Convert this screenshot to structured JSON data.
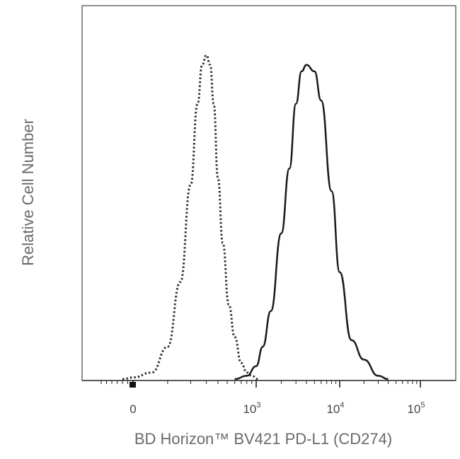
{
  "chart_data": {
    "type": "area",
    "title": "",
    "xlabel": "BD Horizon™ BV421 PD-L1 (CD274)",
    "ylabel": "Relative Cell Number",
    "x_scale": "biexponential (logicle)",
    "xlim": [
      -300,
      100000
    ],
    "ylim": [
      0,
      1
    ],
    "grid": false,
    "legend": "none",
    "x_ticks": [
      {
        "value": 0,
        "base": "0",
        "exp": ""
      },
      {
        "value": 1000,
        "base": "10",
        "exp": "3"
      },
      {
        "value": 10000,
        "base": "10",
        "exp": "4"
      },
      {
        "value": 100000,
        "base": "10",
        "exp": "5"
      }
    ],
    "series": [
      {
        "style": "dotted",
        "color": "#333333",
        "x": [
          -100,
          0,
          50,
          100,
          150,
          200,
          240,
          270,
          300,
          330,
          360,
          400,
          450,
          520,
          600,
          700,
          800,
          900,
          1050
        ],
        "y": [
          0.0,
          0.005,
          0.02,
          0.1,
          0.3,
          0.6,
          0.85,
          0.97,
          1.0,
          0.97,
          0.85,
          0.62,
          0.42,
          0.23,
          0.13,
          0.05,
          0.02,
          0.01,
          0.0
        ]
      },
      {
        "style": "solid",
        "color": "#1a1a1a",
        "x": [
          600,
          800,
          1000,
          1200,
          1500,
          2000,
          2500,
          3000,
          3500,
          4000,
          5000,
          6000,
          8000,
          10000,
          14000,
          20000,
          30000,
          40000
        ],
        "y": [
          0.0,
          0.01,
          0.04,
          0.1,
          0.21,
          0.45,
          0.65,
          0.85,
          0.95,
          0.97,
          0.95,
          0.86,
          0.58,
          0.33,
          0.12,
          0.06,
          0.01,
          0.0
        ]
      }
    ]
  }
}
